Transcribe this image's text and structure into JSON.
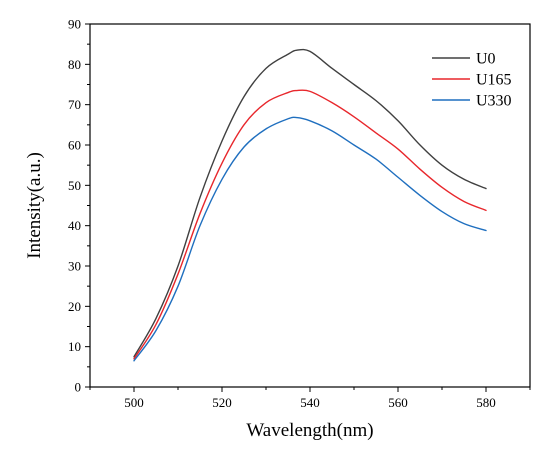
{
  "chart_data": {
    "type": "line",
    "xlabel": "Wavelength(nm)",
    "ylabel": "Intensity(a.u.)",
    "xlim": [
      490,
      590
    ],
    "ylim": [
      0,
      90
    ],
    "xticks": [
      500,
      520,
      540,
      560,
      580
    ],
    "yticks": [
      0,
      10,
      20,
      30,
      40,
      50,
      60,
      70,
      80,
      90
    ],
    "grid": false,
    "legend_position": "top-right",
    "x": [
      500,
      505,
      510,
      515,
      520,
      525,
      530,
      535,
      537,
      540,
      545,
      550,
      555,
      560,
      565,
      570,
      575,
      580
    ],
    "series": [
      {
        "name": "U0",
        "color": "#404040",
        "values": [
          7.5,
          17,
          30,
          47,
          61,
          72,
          79,
          82.5,
          83.5,
          83.2,
          79,
          75,
          71,
          66,
          60,
          55,
          51.5,
          49.2
        ]
      },
      {
        "name": "U165",
        "color": "#e8272c",
        "values": [
          7,
          15.5,
          28,
          43,
          55.5,
          65,
          70.5,
          73,
          73.5,
          73.3,
          70.5,
          67,
          63,
          59,
          54,
          49.5,
          46,
          43.8
        ]
      },
      {
        "name": "U330",
        "color": "#1f6fbf",
        "values": [
          6.5,
          14,
          25,
          40,
          51.5,
          59.5,
          64,
          66.5,
          66.8,
          66,
          63.5,
          60,
          56.5,
          52,
          47.5,
          43.5,
          40.5,
          38.8
        ]
      }
    ]
  }
}
